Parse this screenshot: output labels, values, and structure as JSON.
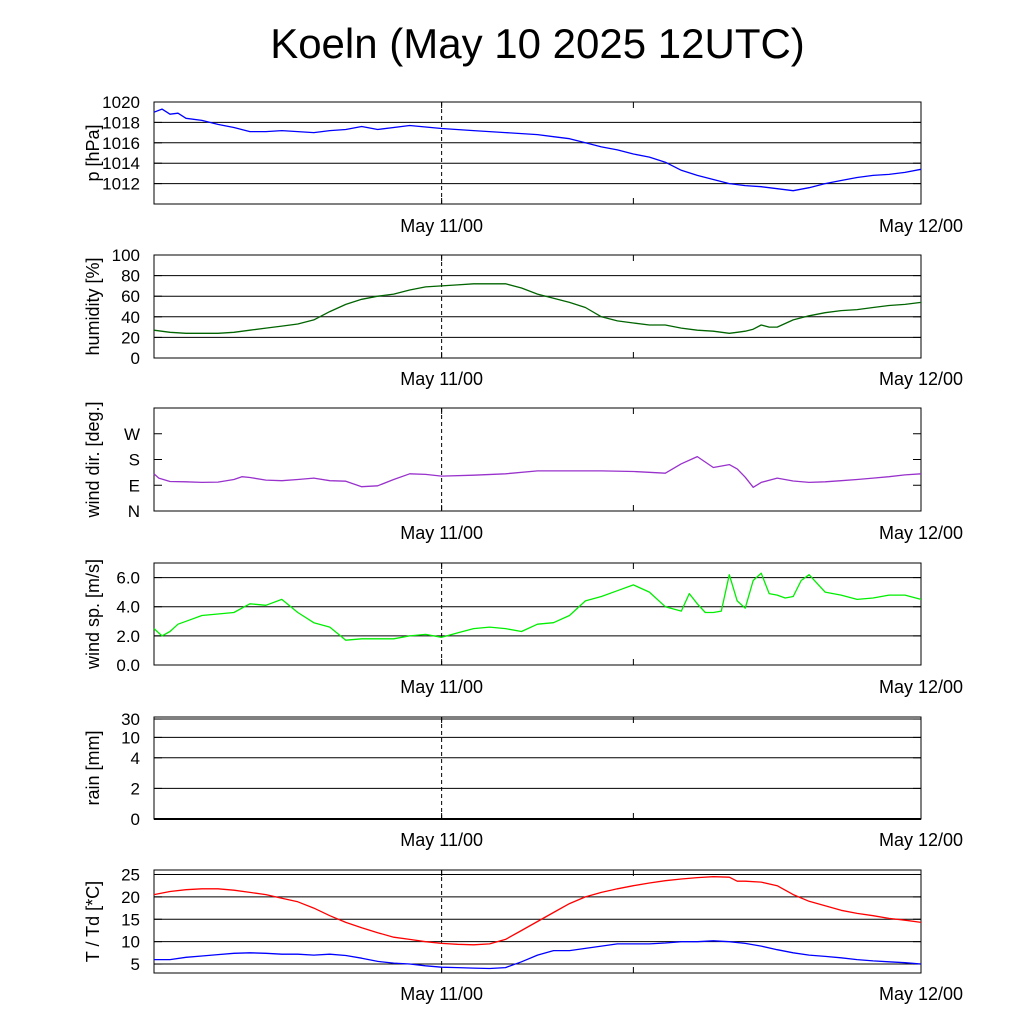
{
  "title": "Koeln (May 10 2025 12UTC)",
  "chart_data": [
    {
      "id": "pressure",
      "type": "line",
      "ylabel": "p [hPa]",
      "ylim": [
        1010,
        1020
      ],
      "yticks": [
        1012,
        1014,
        1016,
        1018,
        1020
      ],
      "ytick_labels": [
        "1012",
        "1014",
        "1016",
        "1018",
        "1020"
      ],
      "grid": true,
      "xlabels": [
        "May 11/00",
        "May 12/00"
      ],
      "series": [
        {
          "color": "#0000ff",
          "x": [
            0,
            0.5,
            1,
            1.5,
            2,
            3,
            4,
            5,
            6,
            7,
            8,
            9,
            10,
            11,
            12,
            13,
            14,
            16,
            18,
            20,
            22,
            24,
            25,
            26,
            27,
            28,
            29,
            30,
            31,
            32,
            33,
            34,
            35,
            36,
            37,
            38,
            39,
            40,
            41,
            42,
            43,
            44,
            45,
            46,
            47,
            48
          ],
          "y": [
            1019.0,
            1019.3,
            1018.8,
            1018.9,
            1018.4,
            1018.2,
            1017.8,
            1017.5,
            1017.1,
            1017.1,
            1017.2,
            1017.1,
            1017.0,
            1017.2,
            1017.3,
            1017.6,
            1017.3,
            1017.7,
            1017.4,
            1017.2,
            1017.0,
            1016.8,
            1016.6,
            1016.4,
            1016.0,
            1015.6,
            1015.3,
            1014.9,
            1014.6,
            1014.1,
            1013.3,
            1012.8,
            1012.4,
            1012.0,
            1011.8,
            1011.7,
            1011.5,
            1011.3,
            1011.6,
            1012.0,
            1012.3,
            1012.6,
            1012.8,
            1012.9,
            1013.1,
            1013.4
          ]
        }
      ]
    },
    {
      "id": "humidity",
      "type": "line",
      "ylabel": "humidity [%]",
      "ylim": [
        0,
        100
      ],
      "yticks": [
        0,
        20,
        40,
        60,
        80,
        100
      ],
      "ytick_labels": [
        "0",
        "20",
        "40",
        "60",
        "80",
        "100"
      ],
      "grid": true,
      "xlabels": [
        "May 11/00",
        "May 12/00"
      ],
      "series": [
        {
          "color": "#006400",
          "x": [
            0,
            1,
            2,
            3,
            4,
            5,
            6,
            7,
            8,
            9,
            10,
            11,
            12,
            13,
            14,
            15,
            16,
            17,
            18,
            19,
            20,
            21,
            22,
            23,
            24,
            25,
            26,
            27,
            28,
            29,
            30,
            31,
            32,
            33,
            34,
            35,
            36,
            36.5,
            37,
            37.5,
            38,
            38.5,
            39,
            40,
            41,
            42,
            43,
            44,
            45,
            46,
            47,
            48
          ],
          "y": [
            27,
            25,
            24,
            24,
            24,
            25,
            27,
            29,
            31,
            33,
            37,
            45,
            52,
            57,
            60,
            62,
            66,
            69,
            70,
            71,
            72,
            72,
            72,
            68,
            62,
            58,
            54,
            49,
            40,
            36,
            34,
            32,
            32,
            29,
            27,
            26,
            24,
            25,
            26,
            28,
            32,
            30,
            30,
            37,
            41,
            44,
            46,
            47,
            49,
            51,
            52,
            54
          ]
        }
      ]
    },
    {
      "id": "wind_direction",
      "type": "line",
      "ylabel": "wind dir. [deg.]",
      "ylim": [
        0,
        360
      ],
      "yticks": [
        0,
        90,
        180,
        270
      ],
      "ytick_labels": [
        "N",
        "E",
        "S",
        "W"
      ],
      "grid": false,
      "xlabels": [
        "May 11/00",
        "May 12/00"
      ],
      "series": [
        {
          "color": "#9932cc",
          "x": [
            0,
            0.3,
            1,
            2,
            3,
            4,
            5,
            5.5,
            6,
            7,
            8,
            9,
            10,
            11,
            12,
            13,
            14,
            15,
            16,
            17,
            18,
            20,
            22,
            24,
            26,
            28,
            30,
            32,
            33,
            34,
            35,
            36,
            36.5,
            37,
            37.5,
            38,
            39,
            40,
            41,
            42,
            43,
            44,
            45,
            46,
            47,
            48
          ],
          "y": [
            130,
            115,
            103,
            102,
            100,
            101,
            110,
            120,
            117,
            108,
            106,
            110,
            115,
            106,
            104,
            85,
            88,
            110,
            130,
            128,
            122,
            125,
            130,
            140,
            140,
            140,
            138,
            132,
            165,
            190,
            152,
            162,
            147,
            118,
            83,
            100,
            115,
            105,
            100,
            102,
            106,
            110,
            115,
            120,
            126,
            130
          ]
        }
      ]
    },
    {
      "id": "wind_speed",
      "type": "line",
      "ylabel": "wind sp. [m/s]",
      "ylim": [
        0,
        7
      ],
      "yticks": [
        0,
        2,
        4,
        6
      ],
      "ytick_labels": [
        "0.0",
        "2.0",
        "4.0",
        "6.0"
      ],
      "grid": true,
      "xlabels": [
        "May 11/00",
        "May 12/00"
      ],
      "series": [
        {
          "color": "#00ee00",
          "x": [
            0,
            0.5,
            1,
            1.5,
            2,
            3,
            4,
            5,
            6,
            7,
            8,
            9,
            10,
            11,
            12,
            13,
            14,
            15,
            16,
            17,
            18,
            19,
            20,
            21,
            22,
            23,
            24,
            25,
            26,
            27,
            28,
            29,
            30,
            31,
            32,
            33,
            33.5,
            34,
            34.5,
            35,
            35.5,
            36,
            36.5,
            37,
            37.5,
            38,
            38.5,
            39,
            39.5,
            40,
            40.5,
            41,
            42,
            43,
            44,
            45,
            46,
            47,
            48
          ],
          "y": [
            2.5,
            2.0,
            2.3,
            2.8,
            3.0,
            3.4,
            3.5,
            3.6,
            4.2,
            4.1,
            4.5,
            3.6,
            2.9,
            2.6,
            1.7,
            1.8,
            1.8,
            1.8,
            2.0,
            2.1,
            1.9,
            2.2,
            2.5,
            2.6,
            2.5,
            2.3,
            2.8,
            2.9,
            3.4,
            4.4,
            4.7,
            5.1,
            5.5,
            5.0,
            4.0,
            3.7,
            4.9,
            4.2,
            3.6,
            3.6,
            3.7,
            6.2,
            4.4,
            3.9,
            5.8,
            6.3,
            4.9,
            4.8,
            4.6,
            4.7,
            5.8,
            6.2,
            5.0,
            4.8,
            4.5,
            4.6,
            4.8,
            4.8,
            4.5
          ]
        }
      ]
    },
    {
      "id": "rain",
      "type": "line",
      "ylabel": "rain [mm]",
      "ylim": [
        0,
        30
      ],
      "yticks": [
        0,
        2,
        4,
        10,
        30
      ],
      "ytick_labels": [
        "0",
        "2",
        "4",
        "10",
        "30"
      ],
      "grid": true,
      "xlabels": [
        "May 11/00",
        "May 12/00"
      ],
      "series": [
        {
          "color": "#000000",
          "x": [
            0,
            48
          ],
          "y": [
            0,
            0
          ]
        }
      ]
    },
    {
      "id": "temperature",
      "type": "line",
      "ylabel": "T / Td [*C]",
      "ylim": [
        3,
        26
      ],
      "yticks": [
        5,
        10,
        15,
        20,
        25
      ],
      "ytick_labels": [
        "5",
        "10",
        "15",
        "20",
        "25"
      ],
      "grid": true,
      "xlabels": [
        "May 11/00",
        "May 12/00"
      ],
      "series": [
        {
          "color": "#ff0000",
          "x": [
            0,
            1,
            2,
            3,
            4,
            5,
            6,
            7,
            8,
            9,
            10,
            11,
            12,
            13,
            14,
            15,
            16,
            17,
            18,
            19,
            20,
            21,
            22,
            23,
            24,
            25,
            26,
            27,
            28,
            29,
            30,
            31,
            32,
            33,
            34,
            35,
            36,
            36.5,
            37,
            38,
            39,
            40,
            41,
            42,
            43,
            44,
            45,
            46,
            47,
            48
          ],
          "y": [
            20.5,
            21.2,
            21.6,
            21.8,
            21.8,
            21.5,
            21.0,
            20.5,
            19.7,
            18.9,
            17.5,
            15.8,
            14.3,
            13.1,
            12.0,
            11.0,
            10.5,
            10.0,
            9.6,
            9.4,
            9.3,
            9.5,
            10.5,
            12.5,
            14.5,
            16.5,
            18.5,
            20.0,
            21.0,
            21.8,
            22.5,
            23.1,
            23.6,
            24.0,
            24.3,
            24.5,
            24.4,
            23.5,
            23.5,
            23.3,
            22.5,
            20.5,
            19.0,
            18.0,
            17.0,
            16.3,
            15.8,
            15.2,
            14.8,
            14.3
          ]
        },
        {
          "color": "#0000ff",
          "x": [
            0,
            1,
            2,
            3,
            4,
            5,
            6,
            7,
            8,
            9,
            10,
            11,
            12,
            13,
            14,
            15,
            16,
            17,
            18,
            19,
            20,
            21,
            22,
            23,
            24,
            25,
            26,
            27,
            28,
            29,
            30,
            31,
            32,
            33,
            34,
            35,
            36,
            37,
            38,
            39,
            40,
            41,
            42,
            43,
            44,
            45,
            46,
            47,
            48
          ],
          "y": [
            6.0,
            6.0,
            6.5,
            6.8,
            7.1,
            7.4,
            7.5,
            7.4,
            7.2,
            7.2,
            7.0,
            7.2,
            6.9,
            6.3,
            5.6,
            5.2,
            5.0,
            4.6,
            4.3,
            4.2,
            4.1,
            4.0,
            4.2,
            5.5,
            7.0,
            8.0,
            8.0,
            8.5,
            9.0,
            9.5,
            9.5,
            9.5,
            9.7,
            10.0,
            10.0,
            10.2,
            10.0,
            9.6,
            9.0,
            8.2,
            7.5,
            7.0,
            6.7,
            6.4,
            6.0,
            5.7,
            5.5,
            5.3,
            5.0
          ]
        }
      ]
    }
  ]
}
